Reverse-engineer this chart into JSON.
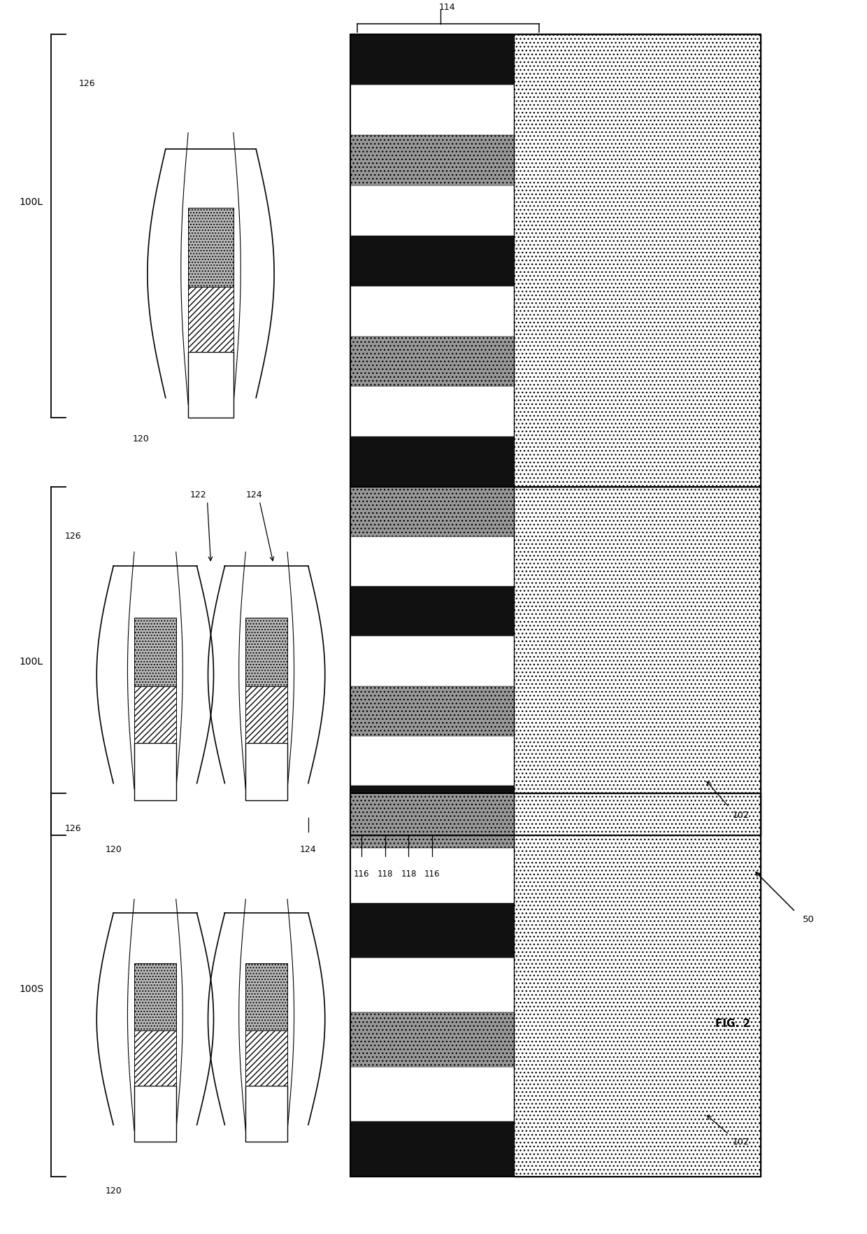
{
  "figsize": [
    12.4,
    17.65
  ],
  "dpi": 100,
  "bg": "#ffffff",
  "labels": {
    "100L": "100L",
    "100S": "100S",
    "fig2": "FIG. 2",
    "50": "50",
    "102": "102",
    "114": "114",
    "116": "116",
    "118": "118",
    "120": "120",
    "122": "122",
    "124": "124",
    "126": "126"
  },
  "xlim": [
    0,
    124
  ],
  "ylim": [
    0,
    176.5
  ]
}
